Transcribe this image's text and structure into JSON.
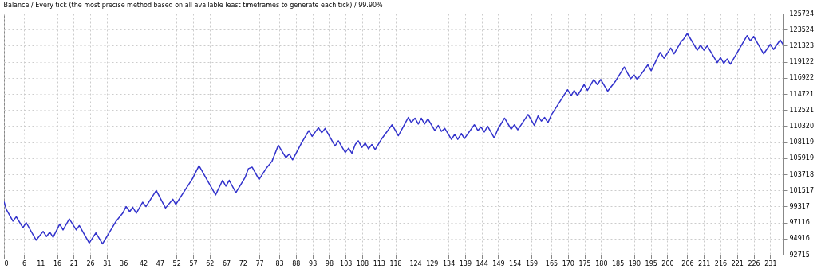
{
  "chart_data": {
    "type": "line",
    "title": "Balance / Every tick (the most precise method based on all available least timeframes to generate each tick) / 99.90%",
    "x": [
      0,
      0.7,
      2.7,
      3.7,
      5.7,
      6.7,
      9.7,
      11.8,
      12.8,
      13.8,
      14.8,
      16.8,
      17.8,
      19.7,
      21.8,
      22.7,
      25.7,
      27.7,
      29.7,
      33.8,
      35.8,
      36.8,
      37.9,
      38.8,
      39.9,
      41.8,
      42.8,
      45.9,
      48.7,
      50.9,
      51.8,
      56.8,
      58.8,
      63.8,
      65.9,
      66.9,
      67.9,
      69.9,
      72.7,
      73.7,
      74.8,
      76.9,
      79,
      80.8,
      82.7,
      85,
      86,
      87,
      89.7,
      91.9,
      92.9,
      94.8,
      95.8,
      96.8,
      99.8,
      100.8,
      102.9,
      103.9,
      104.9,
      105.9,
      106.8,
      107.9,
      108.9,
      109.9,
      110.9,
      111.9,
      113.9,
      117,
      118.9,
      121.9,
      122.8,
      123.9,
      124.9,
      125.8,
      126.8,
      127.8,
      129.9,
      130.9,
      131.9,
      132.9,
      134.9,
      135.9,
      136.8,
      137.9,
      138.8,
      141.8,
      142.9,
      143.8,
      144.8,
      145.8,
      147.8,
      148.9,
      150.9,
      152.9,
      153.9,
      154.9,
      158,
      159.9,
      161,
      162,
      163,
      164,
      165.1,
      169.9,
      171,
      171.9,
      172.9,
      174.9,
      175.9,
      177.8,
      178.9,
      179.9,
      182,
      184.4,
      187,
      188.9,
      190,
      190.9,
      191.9,
      194.1,
      195.1,
      197.8,
      199,
      201,
      202,
      204,
      205,
      206,
      209,
      210,
      211,
      212,
      215,
      216,
      217,
      218,
      219,
      224,
      225,
      226,
      229,
      231,
      232,
      234,
      235
    ],
    "series": [
      {
        "color": "#3333cc",
        "values": [
          100000,
          98900,
          97300,
          97900,
          96400,
          97100,
          94700,
          95900,
          95200,
          95800,
          95100,
          96900,
          96100,
          97600,
          96100,
          96700,
          94300,
          95700,
          94200,
          97300,
          98400,
          99300,
          98600,
          99200,
          98400,
          99900,
          99300,
          101500,
          99100,
          100300,
          99600,
          103100,
          104900,
          100900,
          102900,
          102100,
          102900,
          101200,
          103300,
          104500,
          104700,
          103000,
          104500,
          105500,
          107700,
          106000,
          106500,
          105700,
          108000,
          109700,
          108900,
          110100,
          109400,
          110000,
          107600,
          108300,
          106700,
          107300,
          106600,
          107800,
          108300,
          107400,
          108000,
          107200,
          107800,
          107100,
          108600,
          110500,
          109000,
          111500,
          110800,
          111400,
          110600,
          111400,
          110600,
          111300,
          109700,
          110400,
          109600,
          110000,
          108500,
          109200,
          108500,
          109300,
          108600,
          110500,
          109700,
          110200,
          109500,
          110300,
          108700,
          109900,
          111400,
          109900,
          110500,
          109800,
          111900,
          110400,
          111700,
          111000,
          111500,
          110800,
          111900,
          115300,
          114500,
          115200,
          114500,
          116000,
          115200,
          116700,
          116000,
          116700,
          115100,
          116500,
          118400,
          116800,
          117300,
          116700,
          117300,
          118700,
          117900,
          120400,
          119600,
          121000,
          120200,
          121800,
          122300,
          123000,
          120700,
          121400,
          120700,
          121300,
          119000,
          119700,
          118900,
          119500,
          118800,
          122700,
          122000,
          122600,
          120200,
          121500,
          120800,
          122100,
          121400
        ]
      }
    ],
    "xlim": [
      0,
      235
    ],
    "xticks": [
      0,
      6,
      11,
      16,
      21,
      26,
      31,
      36,
      42,
      47,
      52,
      57,
      62,
      67,
      72,
      77,
      83,
      88,
      93,
      98,
      103,
      108,
      113,
      118,
      124,
      129,
      134,
      139,
      144,
      149,
      154,
      159,
      165,
      170,
      175,
      180,
      185,
      190,
      195,
      200,
      206,
      211,
      216,
      221,
      226,
      231
    ],
    "ylim": [
      92715,
      125724
    ],
    "yticks": [
      92715,
      94916,
      97116,
      99317,
      101517,
      103718,
      105919,
      108119,
      110320,
      112521,
      114721,
      116922,
      119122,
      121323,
      123524,
      125724
    ],
    "grid": true,
    "marker": "none",
    "line_style": "solid"
  }
}
